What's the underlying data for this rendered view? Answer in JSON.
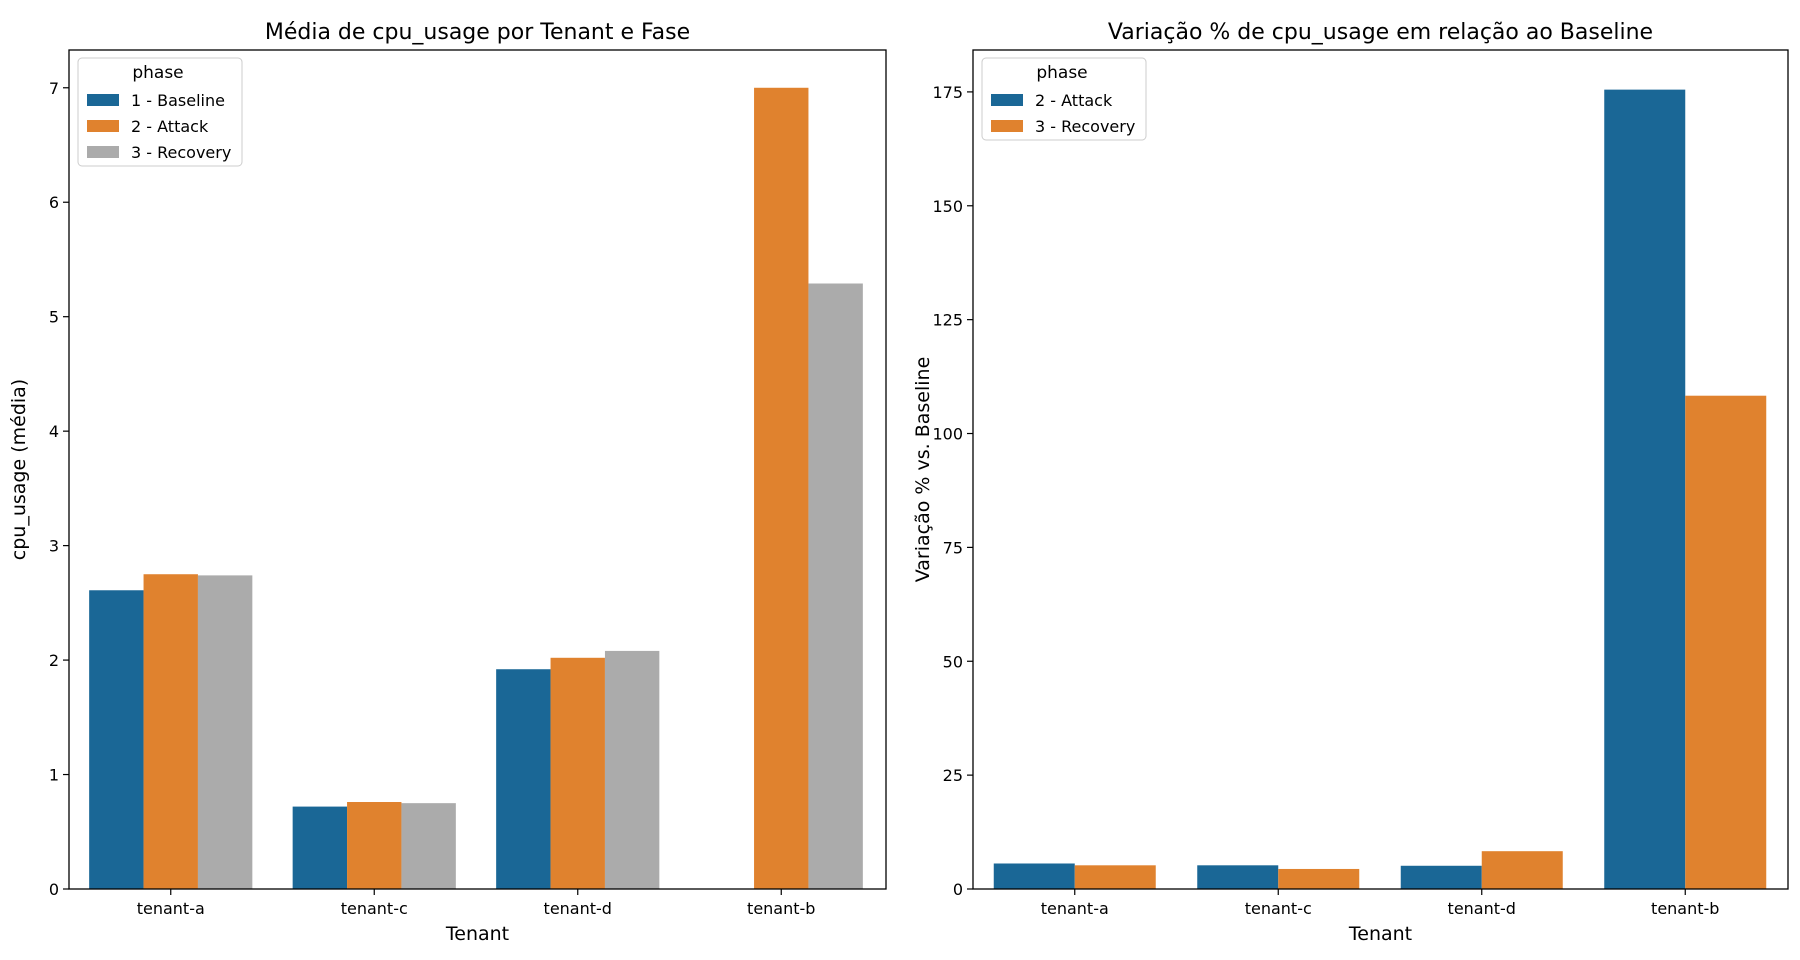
{
  "colors": {
    "baseline": "#1a6796",
    "attack": "#e0822e",
    "recovery": "#ababab",
    "axis": "#000000",
    "legend_border": "#cccccc"
  },
  "chart_data": [
    {
      "type": "bar",
      "title": "Média de cpu_usage por Tenant e Fase",
      "xlabel": "Tenant",
      "ylabel": "cpu_usage (média)",
      "categories": [
        "tenant-a",
        "tenant-c",
        "tenant-d",
        "tenant-b"
      ],
      "ylim": [
        0,
        7.33
      ],
      "yticks": [
        "0",
        "1",
        "2",
        "3",
        "4",
        "5",
        "6",
        "7"
      ],
      "legend": {
        "title": "phase",
        "placement": "top-left"
      },
      "grid": false,
      "series": [
        {
          "name": "1 - Baseline",
          "color_key": "baseline",
          "values": [
            2.61,
            0.72,
            1.92,
            null
          ]
        },
        {
          "name": "2 - Attack",
          "color_key": "attack",
          "values": [
            2.75,
            0.76,
            2.02,
            7.0
          ]
        },
        {
          "name": "3 - Recovery",
          "color_key": "recovery",
          "values": [
            2.74,
            0.75,
            2.08,
            5.29
          ]
        }
      ]
    },
    {
      "type": "bar",
      "title": "Variação % de cpu_usage em relação ao Baseline",
      "xlabel": "Tenant",
      "ylabel": "Variação % vs. Baseline",
      "categories": [
        "tenant-a",
        "tenant-c",
        "tenant-d",
        "tenant-b"
      ],
      "ylim": [
        0,
        184.2
      ],
      "yticks": [
        "0",
        "25",
        "50",
        "75",
        "100",
        "125",
        "150",
        "175"
      ],
      "legend": {
        "title": "phase",
        "placement": "top-left"
      },
      "grid": false,
      "series": [
        {
          "name": "2 - Attack",
          "color_key": "baseline",
          "values": [
            5.6,
            5.2,
            5.1,
            175.5
          ]
        },
        {
          "name": "3 - Recovery",
          "color_key": "attack",
          "values": [
            5.2,
            4.4,
            8.3,
            108.3
          ]
        }
      ]
    }
  ]
}
